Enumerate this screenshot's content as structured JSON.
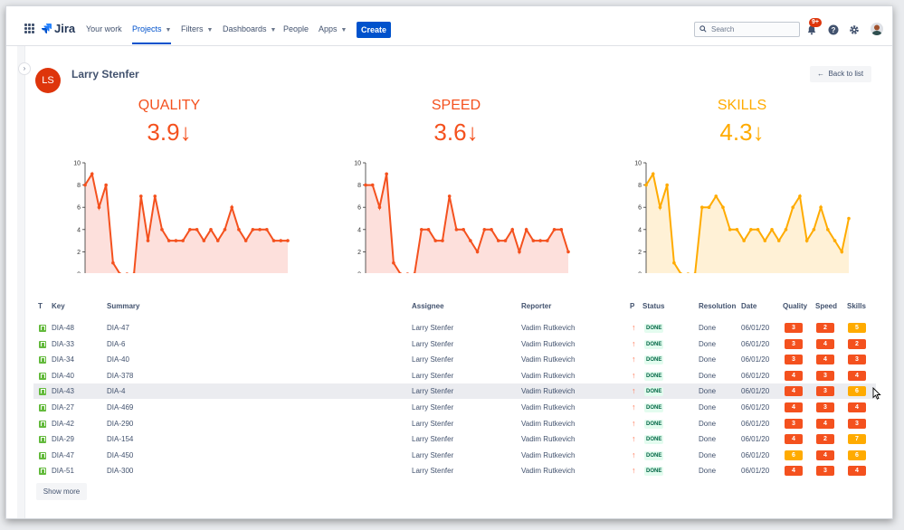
{
  "nav": {
    "app_name": "Jira",
    "items": [
      "Your work",
      "Projects",
      "Filters",
      "Dashboards",
      "People",
      "Apps"
    ],
    "create_label": "Create",
    "search_placeholder": "Search",
    "notifications_badge": "9+"
  },
  "sidebar": {
    "expand_glyph": "›"
  },
  "header": {
    "avatar_initials": "LS",
    "person_name": "Larry Stenfer",
    "back_label": "Back to list"
  },
  "metrics": [
    {
      "title": "QUALITY",
      "value": "3.9↓",
      "color": "#f4511e",
      "fill": "#fde0dc"
    },
    {
      "title": "SPEED",
      "value": "3.6↓",
      "color": "#f4511e",
      "fill": "#fde0dc"
    },
    {
      "title": "SKILLS",
      "value": "4.3↓",
      "color": "#ffab00",
      "fill": "#fff1d6"
    }
  ],
  "chart_data": [
    {
      "type": "area",
      "title": "QUALITY",
      "ylim": [
        0,
        10
      ],
      "yticks": [
        "0",
        "2",
        "4",
        "6",
        "8",
        "10"
      ],
      "values": [
        8,
        9,
        6,
        8,
        1,
        0,
        0,
        0,
        7,
        3,
        7,
        4,
        3,
        3,
        3,
        4,
        4,
        3,
        4,
        3,
        4,
        6,
        4,
        3,
        4,
        4,
        4,
        3,
        3,
        3
      ]
    },
    {
      "type": "area",
      "title": "SPEED",
      "ylim": [
        0,
        10
      ],
      "yticks": [
        "0",
        "2",
        "4",
        "6",
        "8",
        "10"
      ],
      "values": [
        8,
        8,
        6,
        9,
        1,
        0,
        0,
        0,
        4,
        4,
        3,
        3,
        7,
        4,
        4,
        3,
        2,
        4,
        4,
        3,
        3,
        4,
        2,
        4,
        3,
        3,
        3,
        4,
        4,
        2
      ]
    },
    {
      "type": "area",
      "title": "SKILLS",
      "ylim": [
        0,
        10
      ],
      "yticks": [
        "0",
        "2",
        "4",
        "6",
        "8",
        "10"
      ],
      "values": [
        8,
        9,
        6,
        8,
        1,
        0,
        0,
        0,
        6,
        6,
        7,
        6,
        4,
        4,
        3,
        4,
        4,
        3,
        4,
        3,
        4,
        6,
        7,
        3,
        4,
        6,
        4,
        3,
        2,
        5
      ]
    }
  ],
  "table": {
    "headers": [
      "T",
      "Key",
      "Summary",
      "Assignee",
      "Reporter",
      "P",
      "Status",
      "Resolution",
      "Date",
      "Quality",
      "Speed",
      "Skills"
    ],
    "rows": [
      {
        "key": "DIA-48",
        "summary": "DIA-47",
        "assignee": "Larry Stenfer",
        "reporter": "Vadim Rutkevich",
        "priority": "↑",
        "status": "DONE",
        "resolution": "Done",
        "date": "06/01/20",
        "quality": "3",
        "speed": "2",
        "skills": "5"
      },
      {
        "key": "DIA-33",
        "summary": "DIA-6",
        "assignee": "Larry Stenfer",
        "reporter": "Vadim Rutkevich",
        "priority": "↑",
        "status": "DONE",
        "resolution": "Done",
        "date": "06/01/20",
        "quality": "3",
        "speed": "4",
        "skills": "2"
      },
      {
        "key": "DIA-34",
        "summary": "DIA-40",
        "assignee": "Larry Stenfer",
        "reporter": "Vadim Rutkevich",
        "priority": "↑",
        "status": "DONE",
        "resolution": "Done",
        "date": "06/01/20",
        "quality": "3",
        "speed": "4",
        "skills": "3"
      },
      {
        "key": "DIA-40",
        "summary": "DIA-378",
        "assignee": "Larry Stenfer",
        "reporter": "Vadim Rutkevich",
        "priority": "↑",
        "status": "DONE",
        "resolution": "Done",
        "date": "06/01/20",
        "quality": "4",
        "speed": "3",
        "skills": "4"
      },
      {
        "key": "DIA-43",
        "summary": "DIA-4",
        "assignee": "Larry Stenfer",
        "reporter": "Vadim Rutkevich",
        "priority": "↑",
        "status": "DONE",
        "resolution": "Done",
        "date": "06/01/20",
        "quality": "4",
        "speed": "3",
        "skills": "6"
      },
      {
        "key": "DIA-27",
        "summary": "DIA-469",
        "assignee": "Larry Stenfer",
        "reporter": "Vadim Rutkevich",
        "priority": "↑",
        "status": "DONE",
        "resolution": "Done",
        "date": "06/01/20",
        "quality": "4",
        "speed": "3",
        "skills": "4"
      },
      {
        "key": "DIA-42",
        "summary": "DIA-290",
        "assignee": "Larry Stenfer",
        "reporter": "Vadim Rutkevich",
        "priority": "↑",
        "status": "DONE",
        "resolution": "Done",
        "date": "06/01/20",
        "quality": "3",
        "speed": "4",
        "skills": "3"
      },
      {
        "key": "DIA-29",
        "summary": "DIA-154",
        "assignee": "Larry Stenfer",
        "reporter": "Vadim Rutkevich",
        "priority": "↑",
        "status": "DONE",
        "resolution": "Done",
        "date": "06/01/20",
        "quality": "4",
        "speed": "2",
        "skills": "7"
      },
      {
        "key": "DIA-47",
        "summary": "DIA-450",
        "assignee": "Larry Stenfer",
        "reporter": "Vadim Rutkevich",
        "priority": "↑",
        "status": "DONE",
        "resolution": "Done",
        "date": "06/01/20",
        "quality": "6",
        "speed": "4",
        "skills": "6"
      },
      {
        "key": "DIA-51",
        "summary": "DIA-300",
        "assignee": "Larry Stenfer",
        "reporter": "Vadim Rutkevich",
        "priority": "↑",
        "status": "DONE",
        "resolution": "Done",
        "date": "06/01/20",
        "quality": "4",
        "speed": "3",
        "skills": "4"
      }
    ],
    "highlighted_row": 4,
    "show_more_label": "Show more"
  },
  "colors": {
    "score_red": "#f4511e",
    "score_amber": "#ffab00",
    "brand": "#0052cc"
  }
}
